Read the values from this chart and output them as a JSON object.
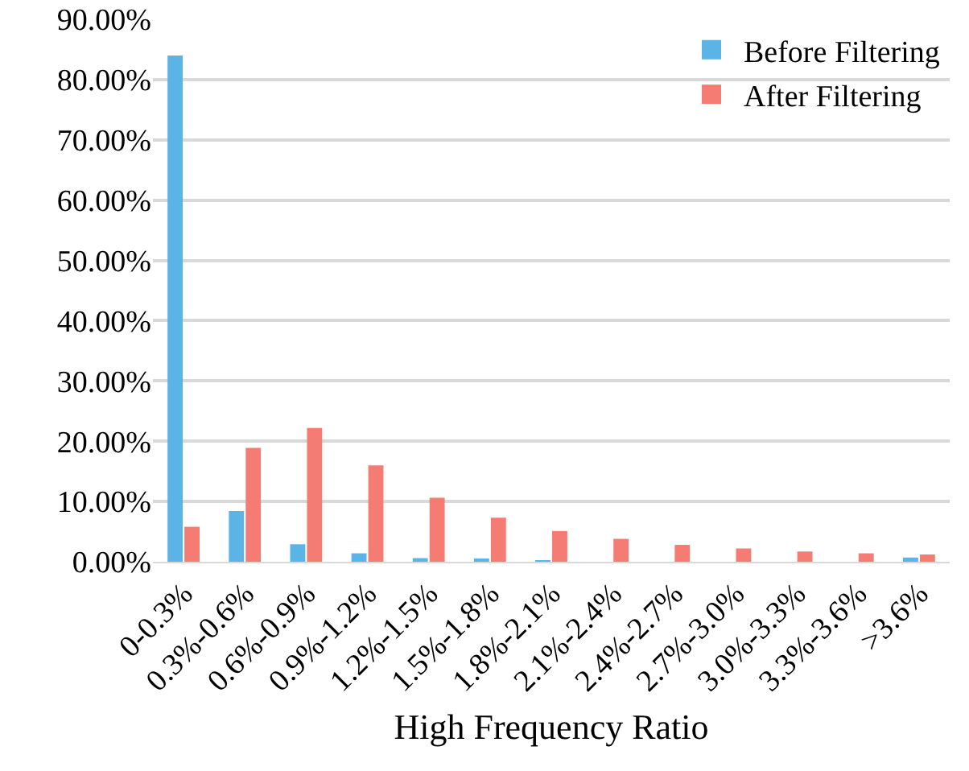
{
  "chart_data": {
    "type": "bar",
    "xlabel": "High Frequency Ratio",
    "categories": [
      "0-0.3%",
      "0.3%-0.6%",
      "0.6%-0.9%",
      "0.9%-1.2%",
      "1.2%-1.5%",
      "1.5%-1.8%",
      "1.8%-2.1%",
      "2.1%-2.4%",
      "2.4%-2.7%",
      "2.7%-3.0%",
      "3.0%-3.3%",
      "3.3%-3.6%",
      ">3.6%"
    ],
    "series": [
      {
        "name": "Before Filtering",
        "color": "#5ab4e5",
        "values": [
          84,
          8.4,
          2.9,
          1.4,
          0.6,
          0.5,
          0.2,
          0,
          0,
          0,
          0,
          0,
          0.7
        ]
      },
      {
        "name": "After Filtering",
        "color": "#f47c73",
        "values": [
          5.8,
          18.9,
          22.2,
          16,
          10.6,
          7.3,
          5.1,
          3.8,
          2.8,
          2.2,
          1.7,
          1.4,
          1.2
        ]
      }
    ],
    "ylim": [
      0,
      90
    ],
    "yticks": [
      {
        "value": 0,
        "label": "0.00%"
      },
      {
        "value": 10,
        "label": "10.00%"
      },
      {
        "value": 20,
        "label": "20.00%"
      },
      {
        "value": 30,
        "label": "30.00%"
      },
      {
        "value": 40,
        "label": "40.00%"
      },
      {
        "value": 50,
        "label": "50.00%"
      },
      {
        "value": 60,
        "label": "60.00%"
      },
      {
        "value": 70,
        "label": "70.00%"
      },
      {
        "value": 80,
        "label": "80.00%"
      },
      {
        "value": 90,
        "label": "90.00%"
      }
    ],
    "grid": "y",
    "legend": "top right"
  }
}
